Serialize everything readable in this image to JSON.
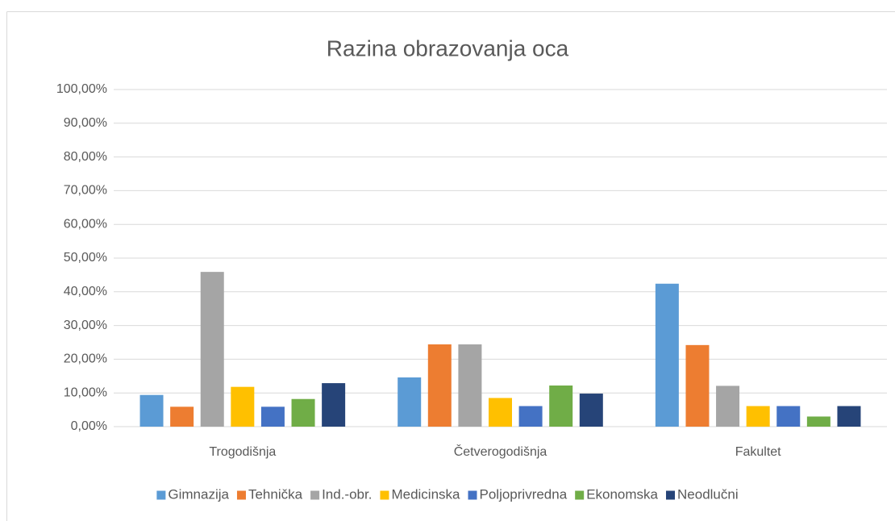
{
  "chart_data": {
    "type": "bar",
    "title": "Razina obrazovanja oca",
    "categories": [
      "Trogodišnja",
      "Četverogodišnja",
      "Fakultet"
    ],
    "series": [
      {
        "name": "Gimnazija",
        "color": "#5B9BD5",
        "values": [
          9.4,
          14.6,
          42.4
        ]
      },
      {
        "name": "Tehnička",
        "color": "#ED7D31",
        "values": [
          5.9,
          24.4,
          24.2
        ]
      },
      {
        "name": "Ind.-obr.",
        "color": "#A5A5A5",
        "values": [
          45.9,
          24.4,
          12.1
        ]
      },
      {
        "name": "Medicinska",
        "color": "#FFC000",
        "values": [
          11.8,
          8.5,
          6.1
        ]
      },
      {
        "name": "Poljoprivredna",
        "color": "#4472C4",
        "values": [
          5.9,
          6.1,
          6.1
        ]
      },
      {
        "name": "Ekonomska",
        "color": "#70AD47",
        "values": [
          8.2,
          12.2,
          3.0
        ]
      },
      {
        "name": "Neodlučni",
        "color": "#264478",
        "values": [
          12.9,
          9.8,
          6.1
        ]
      }
    ],
    "ylim": [
      0,
      100
    ],
    "yticks": [
      {
        "value": 0,
        "label": "0,00%"
      },
      {
        "value": 10,
        "label": "10,00%"
      },
      {
        "value": 20,
        "label": "20,00%"
      },
      {
        "value": 30,
        "label": "30,00%"
      },
      {
        "value": 40,
        "label": "40,00%"
      },
      {
        "value": 50,
        "label": "50,00%"
      },
      {
        "value": 60,
        "label": "60,00%"
      },
      {
        "value": 70,
        "label": "70,00%"
      },
      {
        "value": 80,
        "label": "80,00%"
      },
      {
        "value": 90,
        "label": "90,00%"
      },
      {
        "value": 100,
        "label": "100,00%"
      }
    ],
    "grid": true,
    "legend": "bottom"
  }
}
